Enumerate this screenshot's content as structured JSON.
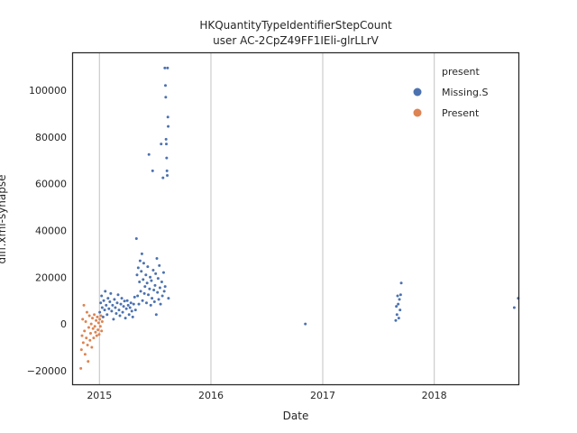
{
  "chart_data": {
    "type": "scatter",
    "title": "HKQuantityTypeIdentifierStepCount",
    "subtitle": "user AC-2CpZ49FF1IEli-glrLLrV",
    "xlabel": "Date",
    "ylabel": "diff.xml-synapse",
    "x_ticks": [
      "2015",
      "2016",
      "2017",
      "2018"
    ],
    "y_ticks": [
      "−20000",
      "0",
      "20000",
      "40000",
      "60000",
      "80000",
      "100000"
    ],
    "xlim": [
      "2014-10-05",
      "2018-10-05"
    ],
    "ylim": [
      -26000,
      116000
    ],
    "grid": "vertical",
    "legend": {
      "title": "present",
      "placement": "top-right",
      "entries": [
        {
          "label": "Missing.S",
          "color": "#4c72b0"
        },
        {
          "label": "Present",
          "color": "#dd8452"
        }
      ]
    },
    "series": [
      {
        "name": "Missing.S",
        "color": "#4c72b0",
        "points": [
          [
            "2015-01-02",
            5000
          ],
          [
            "2015-01-05",
            9000
          ],
          [
            "2015-01-08",
            12000
          ],
          [
            "2015-01-10",
            7000
          ],
          [
            "2015-01-13",
            3000
          ],
          [
            "2015-01-15",
            10000
          ],
          [
            "2015-01-18",
            6000
          ],
          [
            "2015-01-20",
            14000
          ],
          [
            "2015-01-23",
            8000
          ],
          [
            "2015-01-26",
            4000
          ],
          [
            "2015-01-29",
            11000
          ],
          [
            "2015-02-01",
            6500
          ],
          [
            "2015-02-04",
            9500
          ],
          [
            "2015-02-07",
            13000
          ],
          [
            "2015-02-10",
            5500
          ],
          [
            "2015-02-13",
            8000
          ],
          [
            "2015-02-16",
            2000
          ],
          [
            "2015-02-19",
            10500
          ],
          [
            "2015-02-22",
            7000
          ],
          [
            "2015-02-25",
            4500
          ],
          [
            "2015-02-28",
            9000
          ],
          [
            "2015-03-03",
            12500
          ],
          [
            "2015-03-06",
            6000
          ],
          [
            "2015-03-09",
            3500
          ],
          [
            "2015-03-12",
            8500
          ],
          [
            "2015-03-15",
            11000
          ],
          [
            "2015-03-18",
            5000
          ],
          [
            "2015-03-21",
            7500
          ],
          [
            "2015-03-24",
            9800
          ],
          [
            "2015-03-27",
            2500
          ],
          [
            "2015-03-30",
            6500
          ],
          [
            "2015-04-02",
            10000
          ],
          [
            "2015-04-05",
            8000
          ],
          [
            "2015-04-08",
            4000
          ],
          [
            "2015-04-11",
            7000
          ],
          [
            "2015-04-14",
            9000
          ],
          [
            "2015-04-17",
            5500
          ],
          [
            "2015-04-20",
            3000
          ],
          [
            "2015-04-23",
            8500
          ],
          [
            "2015-04-26",
            11500
          ],
          [
            "2015-04-29",
            6000
          ],
          [
            "2015-05-02",
            36500
          ],
          [
            "2015-05-04",
            21000
          ],
          [
            "2015-05-06",
            12000
          ],
          [
            "2015-05-08",
            24000
          ],
          [
            "2015-05-10",
            8500
          ],
          [
            "2015-05-12",
            18000
          ],
          [
            "2015-05-14",
            27000
          ],
          [
            "2015-05-16",
            14000
          ],
          [
            "2015-05-18",
            22500
          ],
          [
            "2015-05-20",
            30000
          ],
          [
            "2015-05-22",
            10000
          ],
          [
            "2015-05-24",
            19000
          ],
          [
            "2015-05-26",
            26000
          ],
          [
            "2015-05-28",
            13000
          ],
          [
            "2015-05-30",
            16000
          ],
          [
            "2015-06-02",
            21000
          ],
          [
            "2015-06-04",
            9000
          ],
          [
            "2015-06-06",
            17500
          ],
          [
            "2015-06-08",
            24500
          ],
          [
            "2015-06-10",
            12500
          ],
          [
            "2015-06-12",
            72500
          ],
          [
            "2015-06-14",
            15000
          ],
          [
            "2015-06-16",
            20000
          ],
          [
            "2015-06-18",
            8000
          ],
          [
            "2015-06-20",
            18500
          ],
          [
            "2015-06-22",
            11000
          ],
          [
            "2015-06-24",
            65500
          ],
          [
            "2015-06-26",
            23000
          ],
          [
            "2015-06-28",
            14500
          ],
          [
            "2015-06-30",
            9500
          ],
          [
            "2015-07-02",
            16500
          ],
          [
            "2015-07-04",
            21500
          ],
          [
            "2015-07-06",
            4000
          ],
          [
            "2015-07-08",
            28000
          ],
          [
            "2015-07-10",
            13500
          ],
          [
            "2015-07-12",
            19500
          ],
          [
            "2015-07-14",
            10500
          ],
          [
            "2015-07-16",
            25000
          ],
          [
            "2015-07-18",
            15500
          ],
          [
            "2015-07-20",
            8500
          ],
          [
            "2015-07-22",
            77000
          ],
          [
            "2015-07-24",
            18000
          ],
          [
            "2015-07-26",
            12000
          ],
          [
            "2015-07-28",
            62500
          ],
          [
            "2015-07-30",
            22000
          ],
          [
            "2015-08-01",
            14000
          ],
          [
            "2015-08-03",
            109500
          ],
          [
            "2015-08-04",
            16000
          ],
          [
            "2015-08-05",
            102000
          ],
          [
            "2015-08-06",
            97000
          ],
          [
            "2015-08-07",
            79000
          ],
          [
            "2015-08-08",
            77000
          ],
          [
            "2015-08-09",
            71000
          ],
          [
            "2015-08-10",
            65500
          ],
          [
            "2015-08-11",
            63500
          ],
          [
            "2015-08-12",
            109500
          ],
          [
            "2015-08-13",
            88500
          ],
          [
            "2015-08-14",
            84500
          ],
          [
            "2015-08-15",
            11000
          ],
          [
            "2016-11-05",
            0
          ],
          [
            "2017-08-28",
            1500
          ],
          [
            "2017-08-30",
            7500
          ],
          [
            "2017-09-01",
            4000
          ],
          [
            "2017-09-03",
            12000
          ],
          [
            "2017-09-05",
            8500
          ],
          [
            "2017-09-07",
            2500
          ],
          [
            "2017-09-09",
            10500
          ],
          [
            "2017-09-11",
            6000
          ],
          [
            "2017-09-13",
            12500
          ],
          [
            "2017-09-15",
            17500
          ],
          [
            "2018-09-20",
            7000
          ],
          [
            "2018-10-03",
            11000
          ]
        ]
      },
      {
        "name": "Present",
        "color": "#dd8452",
        "points": [
          [
            "2014-11-01",
            -19000
          ],
          [
            "2014-11-03",
            -11000
          ],
          [
            "2014-11-05",
            -5000
          ],
          [
            "2014-11-07",
            2000
          ],
          [
            "2014-11-09",
            -8000
          ],
          [
            "2014-11-11",
            8000
          ],
          [
            "2014-11-13",
            -3000
          ],
          [
            "2014-11-15",
            -13000
          ],
          [
            "2014-11-17",
            1000
          ],
          [
            "2014-11-19",
            -6000
          ],
          [
            "2014-11-21",
            5000
          ],
          [
            "2014-11-23",
            -9000
          ],
          [
            "2014-11-25",
            -16000
          ],
          [
            "2014-11-27",
            -1500
          ],
          [
            "2014-11-29",
            3500
          ],
          [
            "2014-12-01",
            -7000
          ],
          [
            "2014-12-03",
            -4000
          ],
          [
            "2014-12-05",
            0
          ],
          [
            "2014-12-07",
            -10000
          ],
          [
            "2014-12-09",
            2500
          ],
          [
            "2014-12-11",
            -2000
          ],
          [
            "2014-12-13",
            -6000
          ],
          [
            "2014-12-15",
            4000
          ],
          [
            "2014-12-17",
            -1000
          ],
          [
            "2014-12-19",
            -3500
          ],
          [
            "2014-12-21",
            1500
          ],
          [
            "2014-12-23",
            -5000
          ],
          [
            "2014-12-25",
            3000
          ],
          [
            "2014-12-27",
            -2500
          ],
          [
            "2014-12-29",
            500
          ],
          [
            "2014-12-31",
            -4500
          ],
          [
            "2015-01-02",
            2000
          ],
          [
            "2015-01-04",
            -1000
          ],
          [
            "2015-01-06",
            3500
          ],
          [
            "2015-01-08",
            -3000
          ],
          [
            "2015-01-10",
            1000
          ]
        ]
      }
    ]
  }
}
